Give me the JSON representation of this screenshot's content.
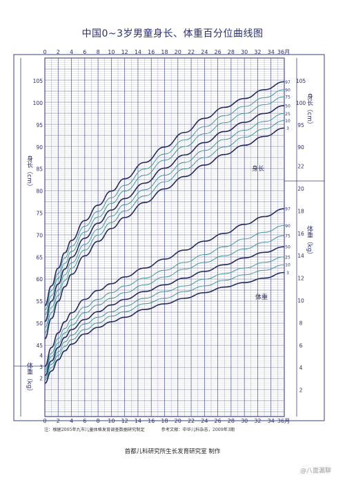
{
  "title": "中国0~3岁男童身长、体重百分位曲线图",
  "note": "注：根据2005年九市儿童体格发育调查数据研究制定",
  "reference": "参考文献：中华儿科杂志，2009年3期",
  "organization": "首都儿科研究所生长发育研究室 制作",
  "watermark": "@八面漏聊",
  "colors": {
    "grid": "#3a3f86",
    "major_curve": "#23285e",
    "minor_curve": "#2f8f8f",
    "text": "#2b2e6e"
  },
  "chart_data": {
    "type": "line",
    "title": "中国0~3岁男童身长、体重百分位曲线图",
    "x": {
      "ticks": [
        0,
        2,
        4,
        6,
        8,
        10,
        12,
        14,
        16,
        18,
        20,
        22,
        24,
        26,
        28,
        30,
        32,
        34
      ],
      "top_last_label": "36月",
      "bottom_last_label": "36月",
      "range": [
        0,
        36
      ]
    },
    "left_axis": {
      "length_label": "身长（cm）",
      "length_ticks": [
        45,
        50,
        55,
        60,
        65,
        70,
        75,
        80,
        85,
        90,
        95,
        100,
        105
      ],
      "weight_label": "体重（kg）",
      "weight_ticks": [
        2,
        3,
        4
      ]
    },
    "right_axis": {
      "length_label": "身长（cm）",
      "length_ticks": [
        90,
        95,
        100,
        105
      ],
      "weight_label": "体重（kg）",
      "weight_ticks": [
        2,
        4,
        6,
        8,
        10,
        12,
        14,
        16,
        18,
        20,
        22
      ]
    },
    "percentile_labels": [
      "97",
      "90",
      "75",
      "50",
      "25",
      "10",
      "3"
    ],
    "length_series_label": "身长",
    "weight_series_label": "体重",
    "length_percentiles": {
      "x": [
        0,
        1,
        2,
        3,
        4,
        6,
        8,
        10,
        12,
        15,
        18,
        21,
        24,
        27,
        30,
        33,
        36
      ],
      "series": [
        {
          "name": "97",
          "values": [
            54.0,
            58.5,
            62.5,
            66.0,
            68.8,
            73.3,
            76.8,
            80.0,
            82.8,
            86.5,
            90.0,
            93.3,
            96.5,
            99.0,
            101.0,
            103.0,
            104.8
          ]
        },
        {
          "name": "90",
          "values": [
            53.0,
            57.4,
            61.3,
            64.8,
            67.5,
            72.0,
            75.4,
            78.5,
            81.3,
            85.0,
            88.4,
            91.6,
            94.6,
            97.1,
            99.2,
            101.2,
            103.0
          ]
        },
        {
          "name": "75",
          "values": [
            51.9,
            56.3,
            60.2,
            63.6,
            66.3,
            70.7,
            74.1,
            77.2,
            80.0,
            83.6,
            87.0,
            90.1,
            93.0,
            95.5,
            97.6,
            99.6,
            101.4
          ]
        },
        {
          "name": "50",
          "values": [
            50.4,
            55.0,
            58.9,
            62.3,
            65.0,
            69.3,
            72.7,
            75.7,
            78.3,
            81.8,
            85.2,
            88.2,
            91.0,
            93.5,
            95.6,
            97.6,
            99.4
          ]
        },
        {
          "name": "25",
          "values": [
            49.0,
            53.6,
            57.5,
            61.0,
            63.7,
            67.9,
            71.3,
            74.3,
            76.9,
            80.3,
            83.6,
            86.5,
            89.2,
            91.7,
            93.8,
            95.8,
            97.6
          ]
        },
        {
          "name": "10",
          "values": [
            47.8,
            52.4,
            56.3,
            59.7,
            62.5,
            66.6,
            70.0,
            72.9,
            75.5,
            78.9,
            82.1,
            85.0,
            87.6,
            90.0,
            92.2,
            94.1,
            96.0
          ]
        },
        {
          "name": "3",
          "values": [
            46.5,
            51.1,
            55.0,
            58.3,
            61.1,
            65.3,
            68.6,
            71.5,
            74.0,
            77.4,
            80.5,
            83.3,
            85.9,
            88.3,
            90.4,
            92.4,
            94.3
          ]
        }
      ]
    },
    "weight_percentiles": {
      "x": [
        0,
        1,
        2,
        3,
        4,
        6,
        8,
        10,
        12,
        15,
        18,
        21,
        24,
        27,
        30,
        33,
        36
      ],
      "series": [
        {
          "name": "97",
          "values": [
            4.1,
            5.8,
            7.1,
            8.1,
            8.9,
            10.1,
            10.9,
            11.5,
            12.1,
            12.9,
            13.7,
            14.5,
            15.3,
            16.0,
            16.8,
            17.5,
            18.2
          ]
        },
        {
          "name": "90",
          "values": [
            3.8,
            5.3,
            6.6,
            7.5,
            8.3,
            9.4,
            10.1,
            10.7,
            11.3,
            12.0,
            12.7,
            13.4,
            14.1,
            14.8,
            15.5,
            16.1,
            16.7
          ]
        },
        {
          "name": "75",
          "values": [
            3.6,
            5.0,
            6.2,
            7.1,
            7.8,
            8.9,
            9.6,
            10.2,
            10.7,
            11.4,
            12.1,
            12.8,
            13.4,
            14.0,
            14.6,
            15.2,
            15.8
          ]
        },
        {
          "name": "50",
          "values": [
            3.3,
            4.6,
            5.8,
            6.7,
            7.4,
            8.3,
            9.0,
            9.6,
            10.1,
            10.8,
            11.4,
            12.0,
            12.6,
            13.2,
            13.8,
            14.3,
            14.8
          ]
        },
        {
          "name": "25",
          "values": [
            3.1,
            4.3,
            5.4,
            6.3,
            6.9,
            7.9,
            8.5,
            9.0,
            9.5,
            10.2,
            10.8,
            11.3,
            11.9,
            12.4,
            12.9,
            13.4,
            13.9
          ]
        },
        {
          "name": "10",
          "values": [
            2.9,
            4.0,
            5.1,
            5.9,
            6.5,
            7.4,
            8.0,
            8.6,
            9.0,
            9.7,
            10.2,
            10.8,
            11.3,
            11.8,
            12.3,
            12.7,
            13.2
          ]
        },
        {
          "name": "3",
          "values": [
            2.6,
            3.7,
            4.7,
            5.5,
            6.1,
            7.0,
            7.6,
            8.1,
            8.5,
            9.2,
            9.7,
            10.2,
            10.7,
            11.2,
            11.6,
            12.0,
            12.5
          ]
        }
      ]
    }
  }
}
